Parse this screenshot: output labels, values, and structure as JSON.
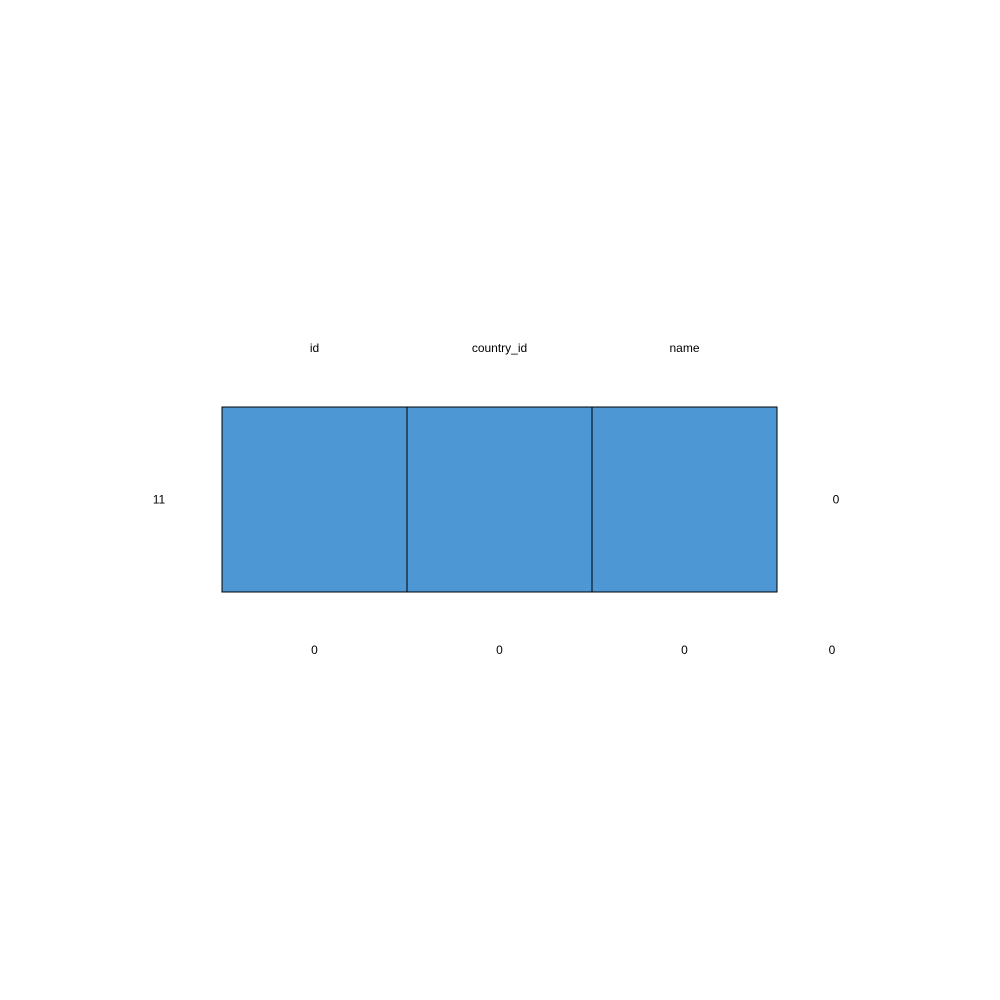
{
  "chart_data": {
    "type": "heatmap",
    "title": "",
    "columns": [
      "id",
      "country_id",
      "name"
    ],
    "rows": [
      {
        "count": 11,
        "pattern": [
          1,
          1,
          1
        ],
        "missing_in_pattern": 0
      }
    ],
    "column_missing_totals": [
      0,
      0,
      0
    ],
    "total_missing": 0,
    "colors": {
      "observed": "#4c97d4",
      "missing": "#e87d72",
      "border": "#000000"
    }
  }
}
